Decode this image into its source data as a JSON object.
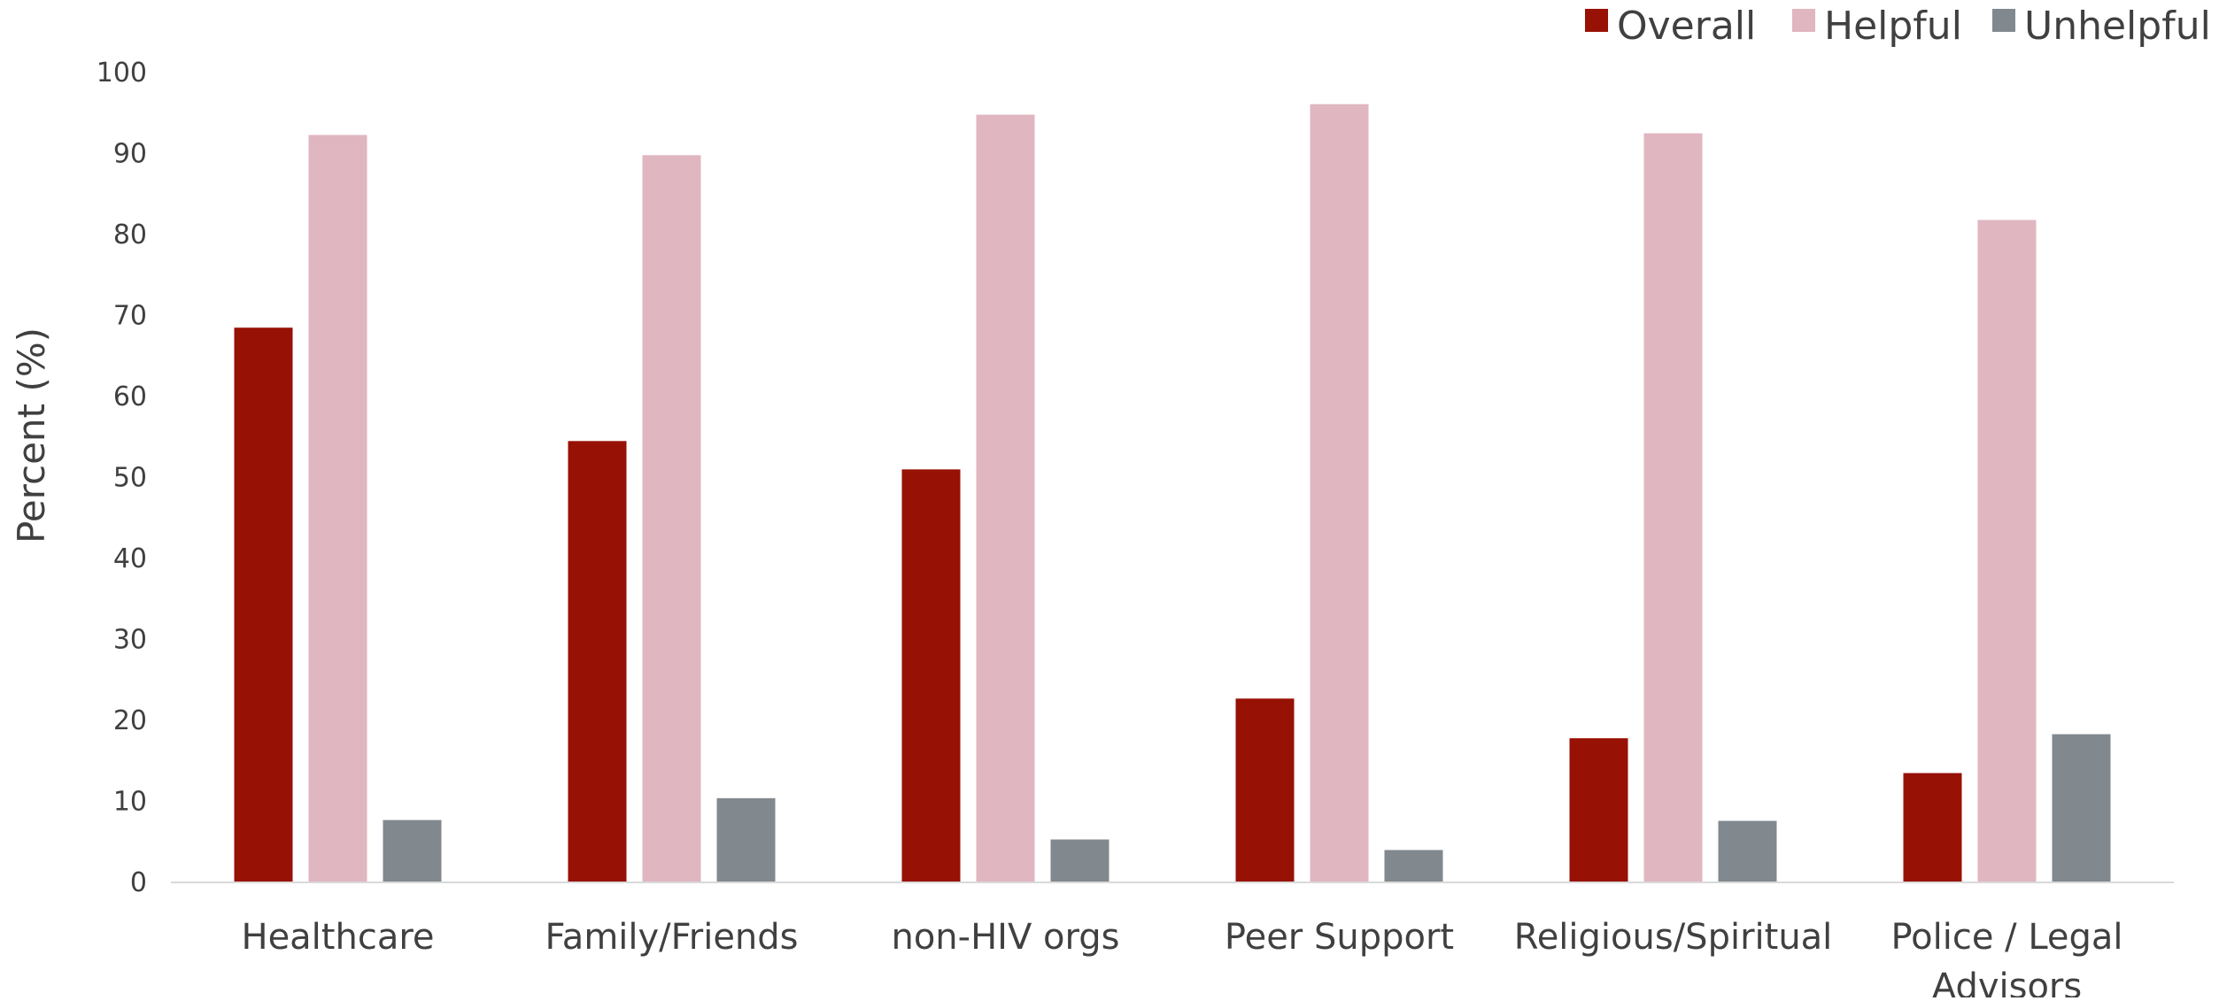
{
  "chart_data": {
    "type": "bar",
    "title": "",
    "xlabel": "",
    "ylabel": "Percent  (%)",
    "ylim": [
      0,
      100
    ],
    "yticks": [
      0,
      10,
      20,
      30,
      40,
      50,
      60,
      70,
      80,
      90,
      100
    ],
    "grid": false,
    "legend_position": "top-right",
    "categories": [
      [
        "Healthcare"
      ],
      [
        "Family/Friends"
      ],
      [
        "non-HIV orgs"
      ],
      [
        "Peer Support"
      ],
      [
        "Religious/Spiritual"
      ],
      [
        "Police / Legal",
        "Advisors"
      ]
    ],
    "series": [
      {
        "name": "Overall",
        "color": "#971104",
        "values": [
          68.5,
          54.5,
          51.0,
          22.7,
          17.8,
          13.5
        ]
      },
      {
        "name": "Helpful",
        "color": "#e0b6c0",
        "values": [
          92.3,
          89.8,
          94.8,
          96.1,
          92.5,
          81.8
        ]
      },
      {
        "name": "Unhelpful",
        "color": "#81898f",
        "values": [
          7.7,
          10.4,
          5.3,
          4.0,
          7.6,
          18.3
        ]
      }
    ],
    "colors": {
      "axis": "#d9d9d9",
      "tick_text": "#404040",
      "label_text": "#404040"
    }
  }
}
